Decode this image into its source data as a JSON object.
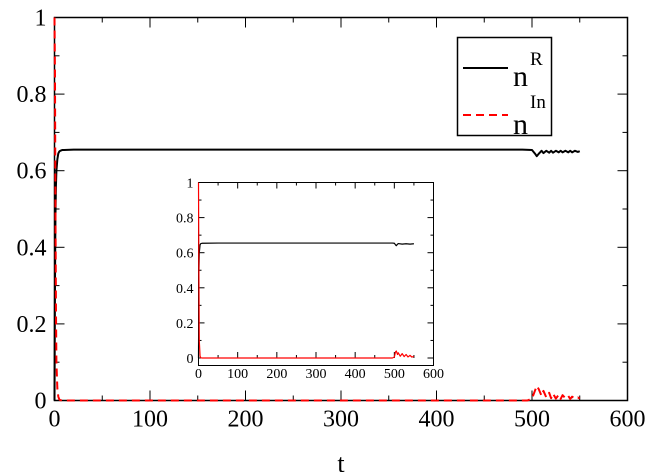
{
  "chart_data": [
    {
      "type": "line",
      "title": "",
      "xlabel": "t",
      "ylabel": "",
      "xlim": [
        0,
        600
      ],
      "ylim": [
        0,
        1
      ],
      "x_ticks": [
        "0",
        "100",
        "200",
        "300",
        "400",
        "500",
        "600"
      ],
      "y_ticks": [
        "0",
        "0.2",
        "0.4",
        "0.6",
        "0.8",
        "1"
      ],
      "legend": {
        "placement": "top-right",
        "entries": [
          {
            "base": "n",
            "sup": "R",
            "color": "#000000",
            "dash": "solid"
          },
          {
            "base": "n",
            "sup": "In",
            "color": "#ff0000",
            "dash": "dashed"
          }
        ]
      },
      "series": [
        {
          "name": "n^R",
          "color": "#000000",
          "dash": "solid",
          "x": [
            0,
            0.5,
            1,
            1.5,
            2,
            3,
            4,
            5,
            6,
            8,
            10,
            20,
            50,
            100,
            200,
            300,
            400,
            490,
            500,
            503,
            505,
            507,
            510,
            512,
            515,
            518,
            520,
            522,
            525,
            528,
            530,
            532,
            535,
            538,
            540,
            542,
            545,
            548,
            550
          ],
          "y": [
            0,
            0.3,
            0.48,
            0.56,
            0.6,
            0.63,
            0.645,
            0.65,
            0.652,
            0.654,
            0.654,
            0.655,
            0.655,
            0.655,
            0.655,
            0.655,
            0.655,
            0.655,
            0.654,
            0.645,
            0.638,
            0.644,
            0.652,
            0.646,
            0.652,
            0.647,
            0.652,
            0.647,
            0.652,
            0.648,
            0.652,
            0.648,
            0.652,
            0.648,
            0.652,
            0.648,
            0.652,
            0.649,
            0.651
          ]
        },
        {
          "name": "n^In",
          "color": "#ff0000",
          "dash": "dashed",
          "x": [
            0,
            0.5,
            1,
            1.5,
            2,
            3,
            4,
            5,
            6,
            8,
            10,
            50,
            100,
            200,
            300,
            400,
            495,
            500,
            503,
            505,
            507,
            510,
            512,
            515,
            518,
            520,
            522,
            525,
            528,
            530,
            532,
            535,
            538,
            540,
            542,
            545,
            548,
            550
          ],
          "y": [
            1,
            0.85,
            0.5,
            0.25,
            0.1,
            0.03,
            0.01,
            0.003,
            0.001,
            0,
            0,
            0,
            0,
            0,
            0,
            0,
            0,
            0.005,
            0.025,
            0.038,
            0.03,
            0.012,
            0.025,
            0.008,
            0.02,
            0.006,
            0.018,
            0.005,
            0.015,
            0.004,
            0.014,
            0.006,
            0.012,
            0.004,
            0.01,
            0.005,
            0.008,
            0.005
          ]
        }
      ]
    },
    {
      "type": "line",
      "title": "",
      "xlabel": "",
      "ylabel": "",
      "xlim": [
        0,
        600
      ],
      "ylim": [
        0,
        1
      ],
      "x_ticks": [
        "0",
        "100",
        "200",
        "300",
        "400",
        "500",
        "600"
      ],
      "y_ticks": [
        "0",
        "0.2",
        "0.4",
        "0.6",
        "0.8",
        "1"
      ],
      "series": [
        {
          "name": "n^R",
          "color": "#000000",
          "dash": "solid",
          "x": [
            0,
            1,
            2,
            4,
            6,
            10,
            50,
            100,
            200,
            300,
            400,
            495,
            500,
            503,
            505,
            508,
            510,
            520,
            530,
            540,
            550
          ],
          "y": [
            0,
            0.48,
            0.6,
            0.645,
            0.652,
            0.654,
            0.655,
            0.655,
            0.655,
            0.655,
            0.655,
            0.655,
            0.654,
            0.645,
            0.64,
            0.648,
            0.652,
            0.649,
            0.651,
            0.649,
            0.651
          ]
        },
        {
          "name": "n^In",
          "color": "#ff0000",
          "dash": "solid",
          "x": [
            0,
            1,
            2,
            4,
            6,
            10,
            50,
            100,
            200,
            300,
            400,
            495,
            500,
            503,
            505,
            508,
            510,
            515,
            520,
            525,
            530,
            535,
            540,
            545,
            550
          ],
          "y": [
            1,
            0.5,
            0.1,
            0.01,
            0.001,
            0,
            0,
            0,
            0,
            0,
            0,
            0,
            0.005,
            0.035,
            0.04,
            0.02,
            0.03,
            0.01,
            0.025,
            0.008,
            0.02,
            0.006,
            0.015,
            0.005,
            0.01
          ]
        }
      ]
    }
  ]
}
